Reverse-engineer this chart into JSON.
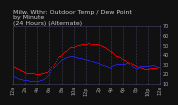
{
  "title_line1": "Milw. Wthr: Outdoor Temp / Dew Point",
  "title_line2": "by Minute",
  "title_line3": "(24 Hours) (Alternate)",
  "background_color": "#111111",
  "plot_bg_color": "#111111",
  "grid_color": "#444466",
  "red_color": "#dd0000",
  "blue_color": "#2222cc",
  "text_color": "#cccccc",
  "axis_label_color": "#aaaaaa",
  "ylim": [
    10,
    70
  ],
  "xlim": [
    0,
    1440
  ],
  "yticks": [
    10,
    20,
    30,
    40,
    50,
    60,
    70
  ],
  "xtick_positions": [
    0,
    120,
    240,
    360,
    480,
    600,
    720,
    840,
    960,
    1080,
    1200,
    1320,
    1440
  ],
  "xtick_labels": [
    "12a",
    "2a",
    "4a",
    "6a",
    "8a",
    "10a",
    "12p",
    "2p",
    "4p",
    "6p",
    "8p",
    "10p",
    "12a"
  ],
  "red_x": [
    0,
    10,
    20,
    30,
    40,
    50,
    60,
    70,
    80,
    90,
    100,
    110,
    120,
    130,
    140,
    150,
    160,
    170,
    180,
    190,
    200,
    210,
    220,
    230,
    240,
    250,
    260,
    270,
    280,
    290,
    300,
    310,
    320,
    330,
    340,
    350,
    360,
    370,
    380,
    390,
    400,
    410,
    420,
    430,
    440,
    450,
    460,
    470,
    480,
    490,
    500,
    510,
    520,
    530,
    540,
    550,
    560,
    570,
    580,
    590,
    600,
    610,
    620,
    630,
    640,
    650,
    660,
    670,
    680,
    690,
    700,
    710,
    720,
    730,
    740,
    750,
    760,
    770,
    780,
    790,
    800,
    810,
    820,
    830,
    840,
    850,
    860,
    870,
    880,
    890,
    900,
    910,
    920,
    930,
    940,
    950,
    960,
    970,
    980,
    990,
    1000,
    1010,
    1020,
    1030,
    1040,
    1050,
    1060,
    1070,
    1080,
    1090,
    1100,
    1110,
    1120,
    1130,
    1140,
    1150,
    1160,
    1170,
    1180,
    1190,
    1200,
    1210,
    1220,
    1230,
    1240,
    1250,
    1260,
    1270,
    1280,
    1290,
    1300,
    1310,
    1320,
    1330,
    1340,
    1350,
    1360,
    1370,
    1380,
    1390,
    1400,
    1410,
    1420,
    1430,
    1440
  ],
  "red_y": [
    28,
    27,
    27,
    26,
    26,
    25,
    25,
    24,
    24,
    23,
    23,
    22,
    22,
    21,
    21,
    21,
    21,
    21,
    21,
    21,
    21,
    21,
    20,
    20,
    20,
    20,
    20,
    20,
    21,
    21,
    21,
    21,
    22,
    22,
    22,
    23,
    24,
    25,
    27,
    28,
    30,
    31,
    33,
    35,
    37,
    38,
    39,
    40,
    41,
    42,
    43,
    44,
    44,
    45,
    46,
    47,
    48,
    48,
    48,
    48,
    48,
    49,
    49,
    50,
    50,
    50,
    50,
    51,
    51,
    51,
    51,
    51,
    51,
    51,
    52,
    52,
    51,
    51,
    51,
    51,
    51,
    51,
    51,
    51,
    50,
    50,
    50,
    49,
    49,
    48,
    48,
    47,
    46,
    46,
    45,
    44,
    43,
    43,
    42,
    41,
    40,
    39,
    39,
    38,
    37,
    37,
    36,
    35,
    35,
    34,
    34,
    33,
    32,
    32,
    31,
    31,
    30,
    30,
    29,
    29,
    28,
    28,
    27,
    27,
    27,
    26,
    26,
    26,
    25,
    25,
    25,
    25,
    25,
    25,
    26,
    26,
    26,
    26,
    26,
    26,
    26,
    26,
    27,
    27,
    27
  ],
  "blue_x": [
    0,
    10,
    20,
    30,
    40,
    50,
    60,
    70,
    80,
    90,
    100,
    110,
    120,
    130,
    140,
    150,
    160,
    170,
    180,
    190,
    200,
    210,
    220,
    230,
    240,
    250,
    260,
    270,
    280,
    290,
    300,
    310,
    320,
    330,
    340,
    350,
    360,
    370,
    380,
    390,
    400,
    410,
    420,
    430,
    440,
    450,
    460,
    470,
    480,
    490,
    500,
    510,
    520,
    530,
    540,
    550,
    560,
    570,
    580,
    590,
    600,
    610,
    620,
    630,
    640,
    650,
    660,
    670,
    680,
    690,
    700,
    710,
    720,
    730,
    740,
    750,
    760,
    770,
    780,
    790,
    800,
    810,
    820,
    830,
    840,
    850,
    860,
    870,
    880,
    890,
    900,
    910,
    920,
    930,
    940,
    950,
    960,
    970,
    980,
    990,
    1000,
    1010,
    1020,
    1030,
    1040,
    1050,
    1060,
    1070,
    1080,
    1090,
    1100,
    1110,
    1120,
    1130,
    1140,
    1150,
    1160,
    1170,
    1180,
    1190,
    1200,
    1210,
    1220,
    1230,
    1240,
    1250,
    1260,
    1270,
    1280,
    1290,
    1300,
    1310,
    1320,
    1330,
    1340,
    1350,
    1360,
    1370,
    1380,
    1390,
    1400,
    1410,
    1420,
    1430,
    1440
  ],
  "blue_y": [
    18,
    18,
    17,
    17,
    16,
    16,
    15,
    15,
    15,
    15,
    14,
    14,
    14,
    14,
    14,
    14,
    13,
    13,
    13,
    13,
    13,
    13,
    13,
    13,
    13,
    13,
    13,
    14,
    14,
    14,
    15,
    15,
    16,
    17,
    18,
    19,
    21,
    22,
    24,
    26,
    27,
    28,
    29,
    30,
    31,
    32,
    33,
    34,
    35,
    35,
    36,
    36,
    37,
    37,
    37,
    38,
    38,
    38,
    38,
    38,
    38,
    37,
    37,
    37,
    36,
    36,
    36,
    36,
    36,
    35,
    35,
    35,
    35,
    34,
    34,
    34,
    33,
    33,
    33,
    32,
    32,
    32,
    31,
    31,
    31,
    30,
    30,
    29,
    29,
    29,
    28,
    28,
    28,
    27,
    27,
    26,
    27,
    28,
    29,
    29,
    29,
    30,
    30,
    30,
    30,
    30,
    30,
    30,
    30,
    30,
    30,
    31,
    31,
    31,
    30,
    29,
    28,
    27,
    27,
    26,
    26,
    25,
    26,
    27,
    28,
    28,
    28,
    28,
    28,
    28,
    28,
    28,
    28,
    28,
    28,
    29,
    29,
    29,
    29,
    28,
    28,
    27,
    27,
    27,
    27
  ],
  "title_fontsize": 4.5,
  "tick_fontsize": 3.5,
  "dot_size": 0.8
}
